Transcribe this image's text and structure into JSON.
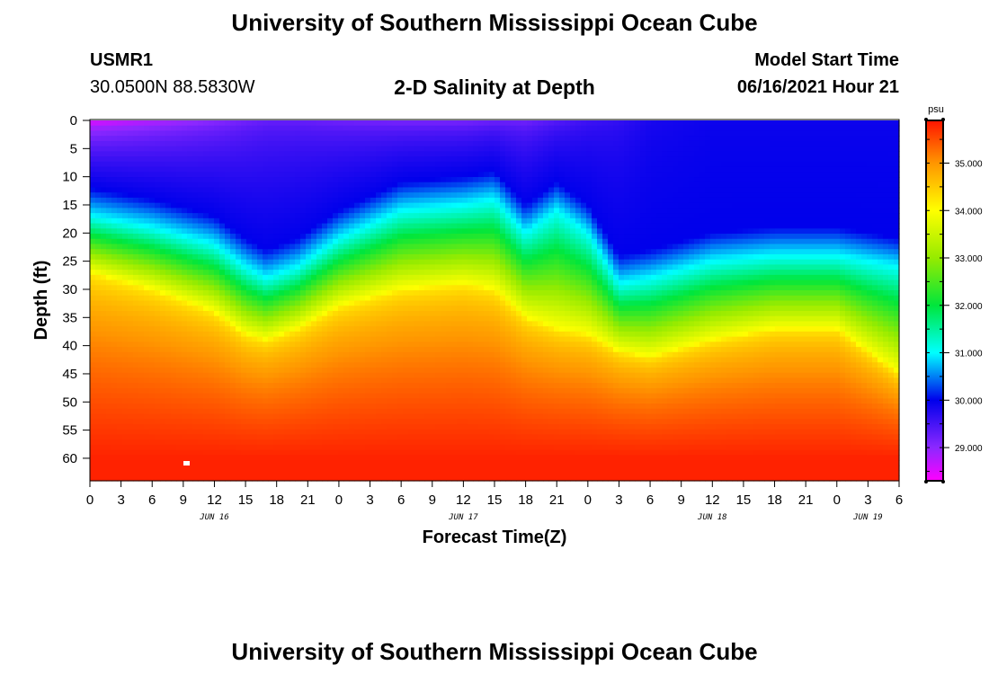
{
  "header": {
    "title": "University of Southern Mississippi Ocean Cube",
    "footer_title": "University of Southern Mississippi Ocean Cube",
    "station": "USMR1",
    "coords": "30.0500N  88.5830W",
    "plot_title": "2-D Salinity at Depth",
    "start_label": "Model Start Time",
    "start_value": "06/16/2021 Hour 21"
  },
  "chart_data": {
    "type": "heatmap",
    "title": "2-D Salinity at Depth",
    "xlabel": "Forecast Time(Z)",
    "ylabel": "Depth (ft)",
    "ylim": [
      0,
      64
    ],
    "x_tick_labels": [
      "0",
      "3",
      "6",
      "9",
      "12",
      "15",
      "18",
      "21",
      "0",
      "3",
      "6",
      "9",
      "12",
      "15",
      "18",
      "21",
      "0",
      "3",
      "6",
      "9",
      "12",
      "15",
      "18",
      "21",
      "0",
      "3",
      "6"
    ],
    "y_tick_labels": [
      "0",
      "5",
      "10",
      "15",
      "20",
      "25",
      "30",
      "35",
      "40",
      "45",
      "50",
      "55",
      "60"
    ],
    "date_labels": [
      {
        "text": "JUN 16",
        "hour": 12
      },
      {
        "text": "JUN 17",
        "hour": 36
      },
      {
        "text": "JUN 18",
        "hour": 60
      },
      {
        "text": "JUN 19",
        "hour": 75
      }
    ],
    "colorbar": {
      "unit": "psu",
      "min": 28.3,
      "max": 35.9,
      "tick_labels": [
        "35.000",
        "34.000",
        "33.000",
        "32.000",
        "31.000",
        "30.000",
        "29.000"
      ],
      "tick_values": [
        35,
        34,
        33,
        32,
        31,
        30,
        29
      ]
    },
    "time_hours": [
      0,
      6,
      12,
      15,
      17,
      20,
      24,
      30,
      36,
      39,
      42,
      45,
      48,
      51,
      54,
      60,
      66,
      72,
      78
    ],
    "depth_31psu": [
      17,
      19,
      22,
      26,
      28,
      26,
      21,
      16,
      15,
      14,
      20,
      16,
      20,
      29,
      28,
      25,
      24,
      24,
      26
    ],
    "depth_34psu": [
      27,
      30,
      34,
      38,
      39,
      37,
      33,
      30,
      29,
      30,
      35,
      37,
      38,
      41,
      42,
      39,
      37,
      37,
      45
    ],
    "surface_salinity": [
      28.3,
      28.6,
      28.9,
      29.1,
      29.2,
      29.2,
      29.1,
      29.0,
      29.0,
      29.1,
      29.1,
      29.3,
      29.5,
      29.6,
      29.8,
      29.9,
      29.9,
      29.9,
      29.9
    ],
    "bottom_salinity": 35.8
  }
}
